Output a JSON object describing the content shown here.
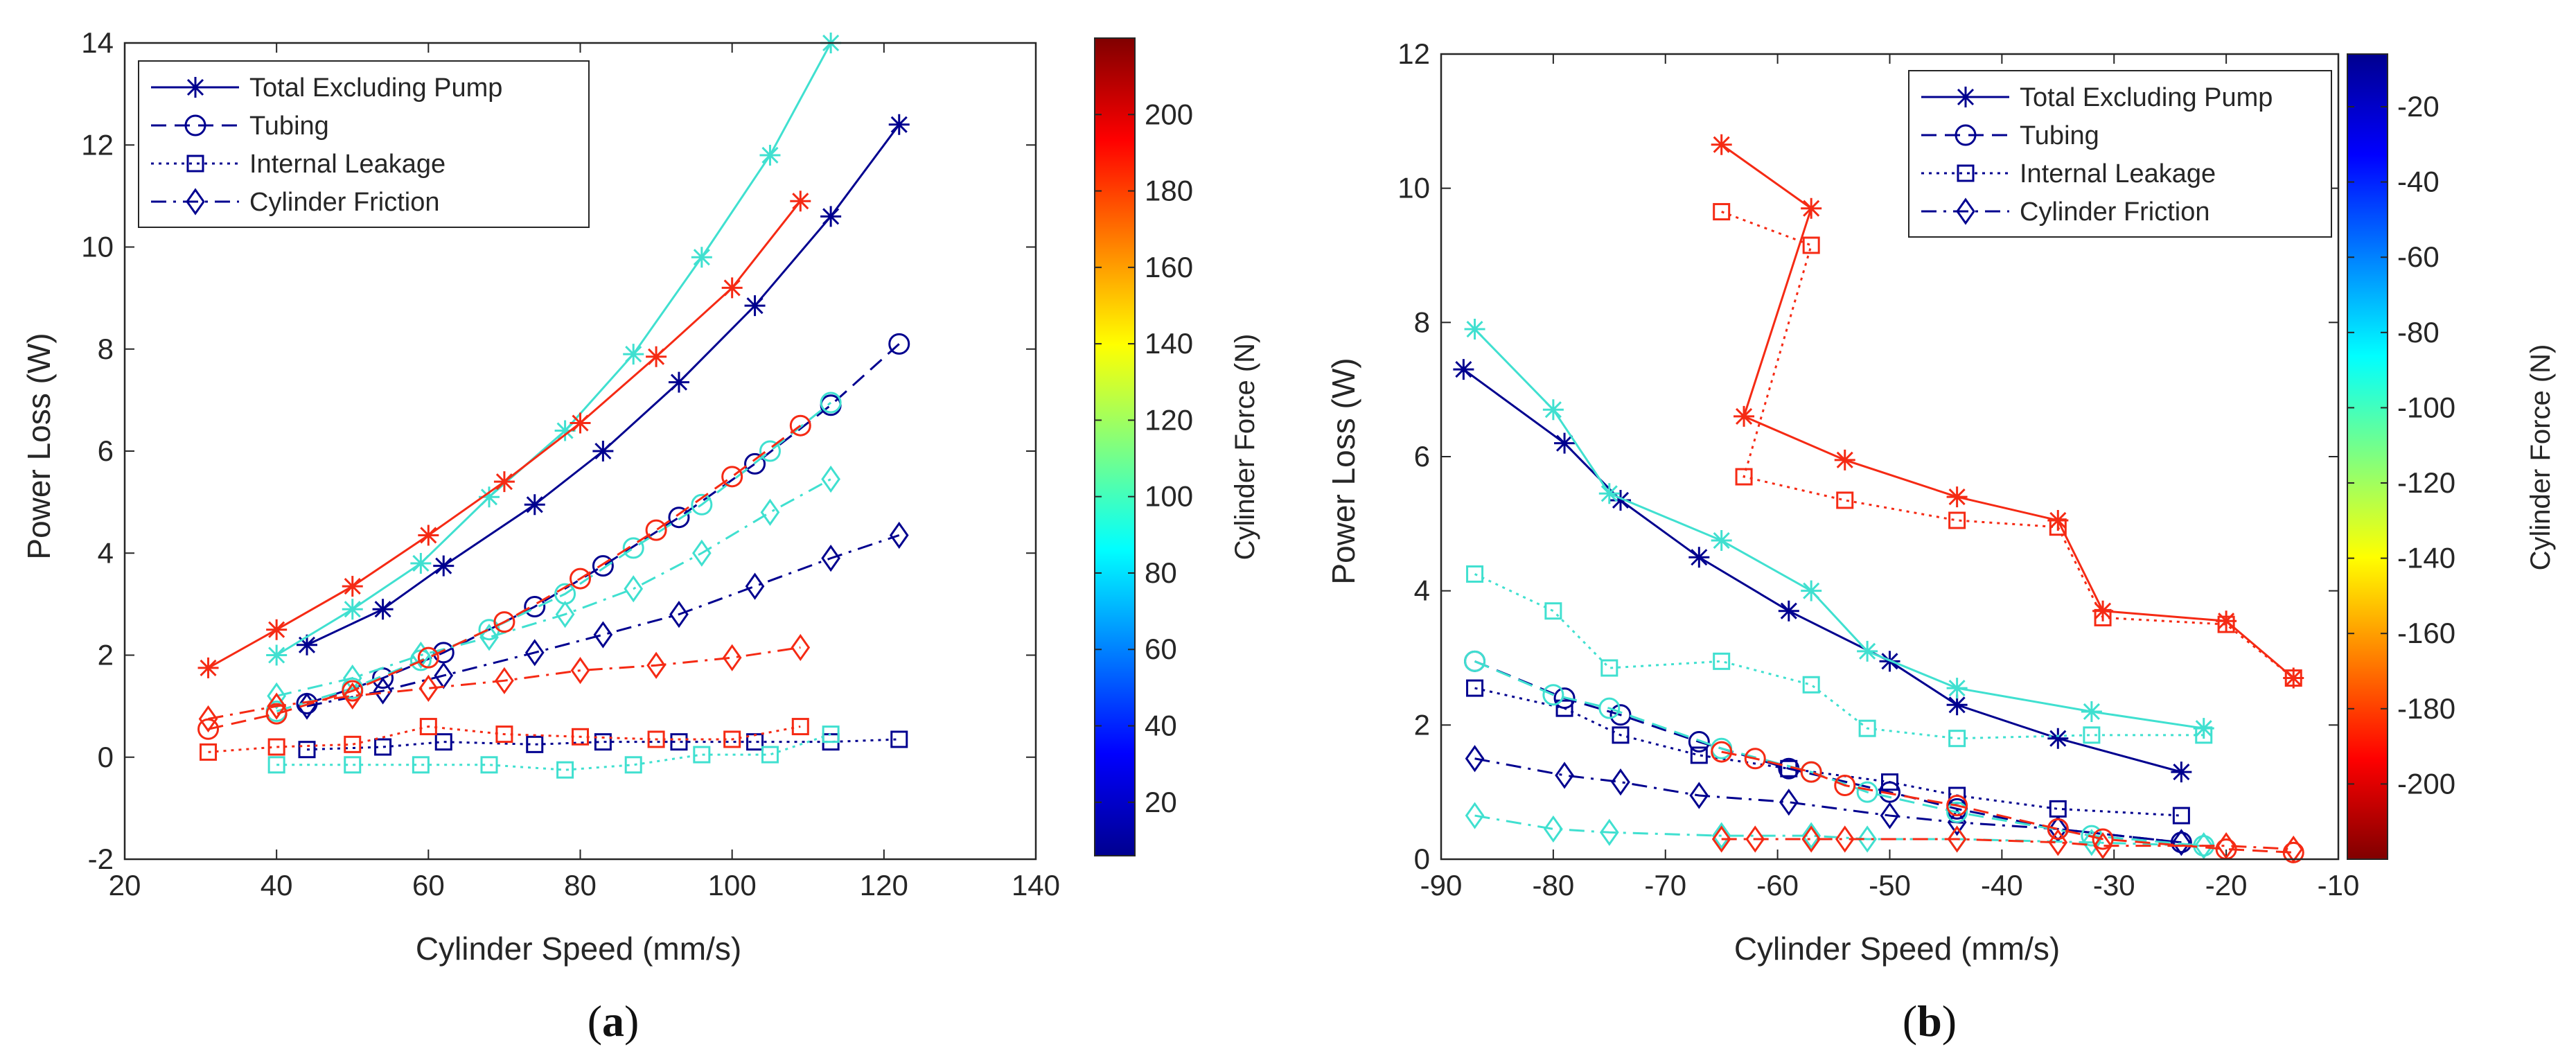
{
  "chart_data": [
    {
      "panel_label": "(a)",
      "panel_letter": "a",
      "type": "line",
      "xlabel": "Cylinder Speed (mm/s)",
      "ylabel": "Power Loss (W)",
      "xlim": [
        20,
        140
      ],
      "ylim": [
        -2,
        14
      ],
      "xticks": [
        20,
        40,
        60,
        80,
        100,
        120,
        140
      ],
      "yticks": [
        -2,
        0,
        2,
        4,
        6,
        8,
        10,
        12,
        14
      ],
      "colorbar": {
        "label": "Cylinder Force (N)",
        "range": [
          6,
          220
        ],
        "ticks": [
          20,
          40,
          60,
          80,
          100,
          120,
          140,
          160,
          180,
          200
        ],
        "direction": "normal"
      },
      "legend": [
        {
          "label": "Total Excluding Pump",
          "marker": "star",
          "dash": "solid"
        },
        {
          "label": "Tubing",
          "marker": "circle",
          "dash": "dashed"
        },
        {
          "label": "Internal Leakage",
          "marker": "square",
          "dash": "dotted"
        },
        {
          "label": "Cylinder Friction",
          "marker": "diamond",
          "dash": "dashdot"
        }
      ],
      "series": [
        {
          "name": "Total Excluding Pump",
          "force": 20,
          "color": "#00008f",
          "marker": "star",
          "dash": "solid",
          "x": [
            44,
            54,
            62,
            74,
            83,
            93,
            103,
            113,
            122
          ],
          "y": [
            2.2,
            2.9,
            3.75,
            4.95,
            6.0,
            7.35,
            8.85,
            10.6,
            12.4
          ]
        },
        {
          "name": "Tubing",
          "force": 20,
          "color": "#00008f",
          "marker": "circle",
          "dash": "dashed",
          "x": [
            44,
            54,
            62,
            74,
            83,
            93,
            103,
            113,
            122
          ],
          "y": [
            1.05,
            1.55,
            2.05,
            2.95,
            3.75,
            4.7,
            5.75,
            6.9,
            8.1
          ]
        },
        {
          "name": "Internal Leakage",
          "force": 20,
          "color": "#00008f",
          "marker": "square",
          "dash": "dotted",
          "x": [
            44,
            54,
            62,
            74,
            83,
            93,
            103,
            113,
            122
          ],
          "y": [
            0.15,
            0.2,
            0.3,
            0.25,
            0.3,
            0.3,
            0.3,
            0.3,
            0.35
          ]
        },
        {
          "name": "Cylinder Friction",
          "force": 20,
          "color": "#00008f",
          "marker": "diamond",
          "dash": "dashdot",
          "x": [
            44,
            54,
            62,
            74,
            83,
            93,
            103,
            113,
            122
          ],
          "y": [
            1.0,
            1.3,
            1.6,
            2.05,
            2.4,
            2.8,
            3.35,
            3.9,
            4.35
          ]
        },
        {
          "name": "Total Excluding Pump",
          "force": 95,
          "color": "#40e0d0",
          "marker": "star",
          "dash": "solid",
          "x": [
            40,
            50,
            59,
            68,
            78,
            87,
            96,
            105,
            113
          ],
          "y": [
            2.0,
            2.9,
            3.8,
            5.1,
            6.4,
            7.9,
            9.8,
            11.8,
            14.0
          ]
        },
        {
          "name": "Tubing",
          "force": 95,
          "color": "#40e0d0",
          "marker": "circle",
          "dash": "dashed",
          "x": [
            40,
            50,
            59,
            68,
            78,
            87,
            96,
            105,
            113
          ],
          "y": [
            0.9,
            1.35,
            1.9,
            2.5,
            3.2,
            4.1,
            4.95,
            6.0,
            6.95
          ]
        },
        {
          "name": "Internal Leakage",
          "force": 95,
          "color": "#40e0d0",
          "marker": "square",
          "dash": "dotted",
          "x": [
            40,
            50,
            59,
            68,
            78,
            87,
            96,
            105,
            113
          ],
          "y": [
            -0.15,
            -0.15,
            -0.15,
            -0.15,
            -0.25,
            -0.15,
            0.05,
            0.05,
            0.45
          ]
        },
        {
          "name": "Cylinder Friction",
          "force": 95,
          "color": "#40e0d0",
          "marker": "diamond",
          "dash": "dashdot",
          "x": [
            40,
            50,
            59,
            68,
            78,
            87,
            96,
            105,
            113
          ],
          "y": [
            1.2,
            1.55,
            2.0,
            2.35,
            2.8,
            3.3,
            4.0,
            4.8,
            5.45
          ]
        },
        {
          "name": "Total Excluding Pump",
          "force": 195,
          "color": "#f52a14",
          "marker": "star",
          "dash": "solid",
          "x": [
            31,
            40,
            50,
            60,
            70,
            80,
            90,
            100,
            109
          ],
          "y": [
            1.75,
            2.5,
            3.35,
            4.35,
            5.4,
            6.55,
            7.85,
            9.2,
            10.9
          ]
        },
        {
          "name": "Tubing",
          "force": 195,
          "color": "#f52a14",
          "marker": "circle",
          "dash": "dashed",
          "x": [
            31,
            40,
            50,
            60,
            70,
            80,
            90,
            100,
            109
          ],
          "y": [
            0.55,
            0.85,
            1.3,
            1.95,
            2.65,
            3.5,
            4.45,
            5.5,
            6.5
          ]
        },
        {
          "name": "Internal Leakage",
          "force": 195,
          "color": "#f52a14",
          "marker": "square",
          "dash": "dotted",
          "x": [
            31,
            40,
            50,
            60,
            70,
            80,
            90,
            100,
            109
          ],
          "y": [
            0.1,
            0.2,
            0.25,
            0.6,
            0.45,
            0.4,
            0.35,
            0.35,
            0.6
          ]
        },
        {
          "name": "Cylinder Friction",
          "force": 195,
          "color": "#f52a14",
          "marker": "diamond",
          "dash": "dashdot",
          "x": [
            31,
            40,
            50,
            60,
            70,
            80,
            90,
            100,
            109
          ],
          "y": [
            0.75,
            1.0,
            1.2,
            1.35,
            1.5,
            1.7,
            1.8,
            1.95,
            2.15
          ]
        }
      ]
    },
    {
      "panel_label": "(b)",
      "panel_letter": "b",
      "type": "line",
      "xlabel": "Cylinder Speed (mm/s)",
      "ylabel": "Power Loss (W)",
      "xlim": [
        -90,
        -10
      ],
      "ylim": [
        0,
        12
      ],
      "xticks": [
        -90,
        -80,
        -70,
        -60,
        -50,
        -40,
        -30,
        -20,
        -10
      ],
      "yticks": [
        0,
        2,
        4,
        6,
        8,
        10,
        12
      ],
      "colorbar": {
        "label": "Cylinder Force (N)",
        "range": [
          -220,
          -6
        ],
        "ticks": [
          -20,
          -40,
          -60,
          -80,
          -100,
          -120,
          -140,
          -160,
          -180,
          -200
        ],
        "direction": "reversed"
      },
      "legend": [
        {
          "label": "Total Excluding Pump",
          "marker": "star",
          "dash": "solid"
        },
        {
          "label": "Tubing",
          "marker": "circle",
          "dash": "dashed"
        },
        {
          "label": "Internal Leakage",
          "marker": "square",
          "dash": "dotted"
        },
        {
          "label": "Cylinder Friction",
          "marker": "diamond",
          "dash": "dashdot"
        }
      ],
      "series": [
        {
          "name": "Total Excluding Pump",
          "force": -20,
          "color": "#00008f",
          "marker": "star",
          "dash": "solid",
          "x": [
            -88,
            -79,
            -74,
            -67,
            -59,
            -50,
            -44,
            -35,
            -24
          ],
          "y": [
            7.3,
            6.2,
            5.35,
            4.5,
            3.7,
            2.95,
            2.3,
            1.8,
            1.3
          ]
        },
        {
          "name": "Tubing",
          "force": -20,
          "color": "#00008f",
          "marker": "circle",
          "dash": "dashed",
          "x": [
            -87,
            -79,
            -74,
            -67,
            -59,
            -50,
            -44,
            -35,
            -24
          ],
          "y": [
            2.95,
            2.4,
            2.15,
            1.75,
            1.35,
            1.0,
            0.75,
            0.45,
            0.25
          ]
        },
        {
          "name": "Internal Leakage",
          "force": -20,
          "color": "#00008f",
          "marker": "square",
          "dash": "dotted",
          "x": [
            -87,
            -79,
            -74,
            -67,
            -59,
            -50,
            -44,
            -35,
            -24
          ],
          "y": [
            2.55,
            2.25,
            1.85,
            1.55,
            1.35,
            1.15,
            0.95,
            0.75,
            0.65
          ]
        },
        {
          "name": "Cylinder Friction",
          "force": -20,
          "color": "#00008f",
          "marker": "diamond",
          "dash": "dashdot",
          "x": [
            -87,
            -79,
            -74,
            -67,
            -59,
            -50,
            -44,
            -35,
            -24
          ],
          "y": [
            1.5,
            1.25,
            1.15,
            0.95,
            0.85,
            0.65,
            0.55,
            0.45,
            0.25
          ]
        },
        {
          "name": "Total Excluding Pump",
          "force": -95,
          "color": "#40e0d0",
          "marker": "star",
          "dash": "solid",
          "x": [
            -87,
            -80,
            -75,
            -65,
            -57,
            -52,
            -44,
            -32,
            -22
          ],
          "y": [
            7.9,
            6.7,
            5.45,
            4.75,
            4.0,
            3.1,
            2.55,
            2.2,
            1.95
          ]
        },
        {
          "name": "Tubing",
          "force": -95,
          "color": "#40e0d0",
          "marker": "circle",
          "dash": "dashed",
          "x": [
            -87,
            -80,
            -75,
            -65,
            -57,
            -52,
            -44,
            -32,
            -22
          ],
          "y": [
            2.95,
            2.45,
            2.25,
            1.65,
            1.3,
            1.0,
            0.7,
            0.35,
            0.2
          ]
        },
        {
          "name": "Internal Leakage",
          "force": -95,
          "color": "#40e0d0",
          "marker": "square",
          "dash": "dotted",
          "x": [
            -87,
            -80,
            -75,
            -65,
            -57,
            -52,
            -44,
            -32,
            -22
          ],
          "y": [
            4.25,
            3.7,
            2.85,
            2.95,
            2.6,
            1.95,
            1.8,
            1.85,
            1.85
          ]
        },
        {
          "name": "Cylinder Friction",
          "force": -95,
          "color": "#40e0d0",
          "marker": "diamond",
          "dash": "dashdot",
          "x": [
            -87,
            -80,
            -75,
            -65,
            -57,
            -52,
            -44,
            -32,
            -22
          ],
          "y": [
            0.65,
            0.45,
            0.4,
            0.35,
            0.35,
            0.3,
            0.3,
            0.25,
            0.2
          ]
        },
        {
          "name": "Total Excluding Pump",
          "force": -195,
          "color": "#f52a14",
          "marker": "star",
          "dash": "solid",
          "x": [
            -65,
            -57,
            -63,
            -54,
            -44,
            -35,
            -31,
            -20,
            -14
          ],
          "y": [
            10.65,
            9.7,
            6.6,
            5.95,
            5.4,
            5.05,
            3.7,
            3.55,
            2.7
          ]
        },
        {
          "name": "Tubing",
          "force": -195,
          "color": "#f52a14",
          "marker": "circle",
          "dash": "dashed",
          "x": [
            -65,
            -62,
            -57,
            -54,
            -44,
            -35,
            -31,
            -20,
            -14
          ],
          "y": [
            1.6,
            1.5,
            1.3,
            1.1,
            0.8,
            0.45,
            0.3,
            0.15,
            0.1
          ]
        },
        {
          "name": "Internal Leakage",
          "force": -195,
          "color": "#f52a14",
          "marker": "square",
          "dash": "dotted",
          "x": [
            -65,
            -57,
            -63,
            -54,
            -44,
            -35,
            -31,
            -20,
            -14
          ],
          "y": [
            9.65,
            9.15,
            5.7,
            5.35,
            5.05,
            4.95,
            3.6,
            3.5,
            2.7
          ]
        },
        {
          "name": "Cylinder Friction",
          "force": -195,
          "color": "#f52a14",
          "marker": "diamond",
          "dash": "dashdot",
          "x": [
            -65,
            -62,
            -57,
            -54,
            -44,
            -35,
            -31,
            -20,
            -14
          ],
          "y": [
            0.3,
            0.3,
            0.3,
            0.3,
            0.3,
            0.25,
            0.2,
            0.2,
            0.15
          ]
        }
      ]
    }
  ]
}
